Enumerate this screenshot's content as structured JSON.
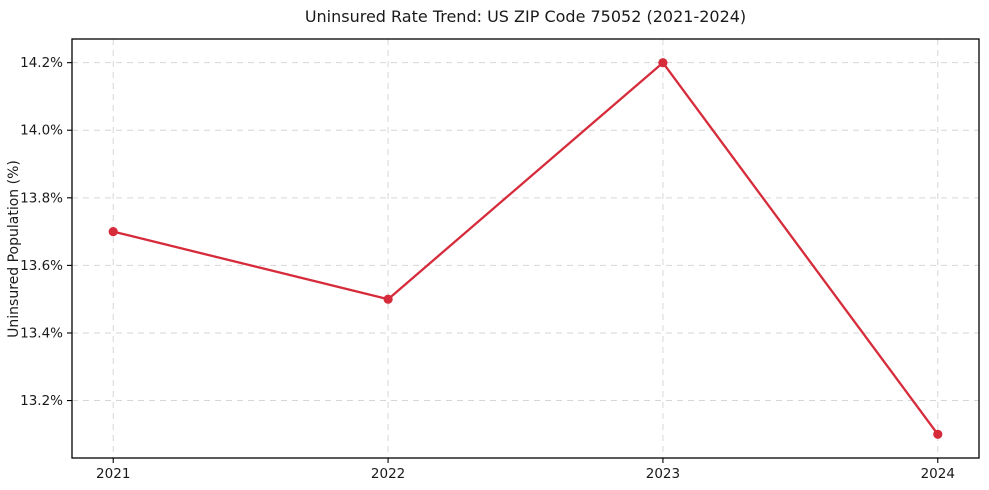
{
  "chart_data": {
    "type": "line",
    "title": "Uninsured Rate Trend: US ZIP Code 75052 (2021-2024)",
    "xlabel": "",
    "ylabel": "Uninsured Population (%)",
    "x": [
      2021,
      2022,
      2023,
      2024
    ],
    "values": [
      13.7,
      13.5,
      14.2,
      13.1
    ],
    "value_labels": [
      "13.7%",
      "13.5%",
      "14.2%",
      "13.1%"
    ],
    "xtick_labels": [
      "2021",
      "2022",
      "2023",
      "2024"
    ],
    "yticks": [
      13.2,
      13.4,
      13.6,
      13.8,
      14.0,
      14.2
    ],
    "ytick_labels": [
      "13.2%",
      "13.4%",
      "13.6%",
      "13.8%",
      "14.0%",
      "14.2%"
    ],
    "xlim": [
      2020.85,
      2024.15
    ],
    "ylim": [
      13.03,
      14.27
    ],
    "grid": true,
    "grid_style": "dashed",
    "legend": false,
    "marker": "circle",
    "line_color": "#d62b3a",
    "grid_color": "#d6d6d6",
    "axis_color": "#000000",
    "text_color": "#1a1a1a",
    "background_color": "#ffffff"
  }
}
